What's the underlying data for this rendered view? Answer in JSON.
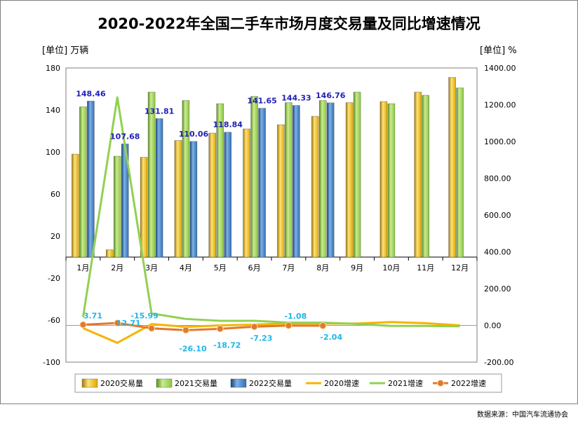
{
  "title": "2020-2022年全国二手车市场月度交易量及同比增速情况",
  "unit_left": "[单位] 万辆",
  "unit_right": "[单位] %",
  "source": "数据来源：中国汽车流通协会",
  "colors": {
    "bar2020": "#e0a800",
    "bar2021": "#8cc641",
    "bar2022": "#2f6fb5",
    "line2020": "#f5b400",
    "line2021": "#92d050",
    "line2022": "#e07a2c",
    "label_bar": "#1f1fb8",
    "label_line": "#1eb6e6"
  },
  "chart_data": {
    "type": "bar",
    "categories": [
      "1月",
      "2月",
      "3月",
      "4月",
      "5月",
      "6月",
      "7月",
      "8月",
      "9月",
      "10月",
      "11月",
      "12月"
    ],
    "series": [
      {
        "name": "2020交易量",
        "kind": "bar",
        "axis": "left",
        "values": [
          98,
          7,
          95,
          111,
          118,
          122,
          126,
          134,
          147,
          148,
          157,
          171
        ]
      },
      {
        "name": "2021交易量",
        "kind": "bar",
        "axis": "left",
        "values": [
          143,
          96,
          157,
          149,
          146,
          153,
          147,
          149,
          157,
          146,
          154,
          161
        ]
      },
      {
        "name": "2022交易量",
        "kind": "bar",
        "axis": "left",
        "values": [
          148.46,
          107.68,
          131.81,
          110.06,
          118.84,
          141.65,
          144.33,
          146.76,
          null,
          null,
          null,
          null
        ]
      },
      {
        "name": "2020增速",
        "kind": "line",
        "axis": "right",
        "values": [
          -15,
          -95,
          7,
          -8,
          0,
          4,
          11,
          10,
          10,
          18,
          12,
          0
        ]
      },
      {
        "name": "2021增速",
        "kind": "line",
        "axis": "right",
        "values": [
          45,
          1240,
          65,
          35,
          25,
          25,
          15,
          15,
          8,
          -3,
          -3,
          -5
        ]
      },
      {
        "name": "2022增速",
        "kind": "line",
        "axis": "right",
        "values": [
          3.71,
          12.71,
          -15.99,
          -26.1,
          -18.72,
          -7.23,
          -1.08,
          -2.04,
          null,
          null,
          null,
          null
        ]
      }
    ],
    "bar_labels": [
      "148.46",
      "107.68",
      "131.81",
      "110.06",
      "118.84",
      "141.65",
      "144.33",
      "146.76"
    ],
    "line_labels": [
      "3.71",
      "12.71",
      "-15.99",
      "-26.10",
      "-18.72",
      "-7.23",
      "-1.08",
      "-2.04"
    ],
    "left_axis": {
      "ylim": [
        -100,
        180
      ],
      "ticks": [
        "180",
        "140",
        "100",
        "60",
        "20",
        "-20",
        "-60",
        "-100"
      ]
    },
    "right_axis": {
      "ylim": [
        -200,
        1400
      ],
      "ticks": [
        "1400.00",
        "1200.00",
        "1000.00",
        "800.00",
        "600.00",
        "400.00",
        "200.00",
        "0.00",
        "-200.00"
      ]
    },
    "legend_position": "bottom",
    "grid": false
  }
}
